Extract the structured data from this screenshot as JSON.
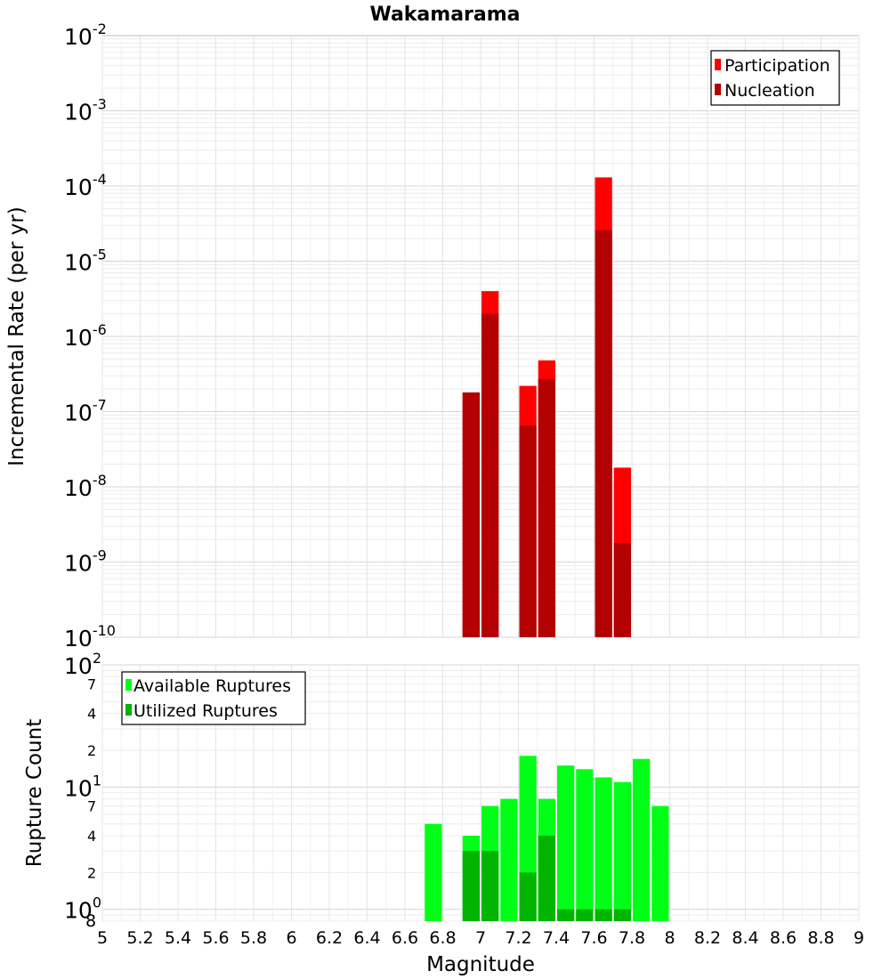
{
  "chart_data": [
    {
      "type": "bar",
      "title": "Wakamarama",
      "xlabel": "",
      "ylabel": "Incremental Rate (per yr)",
      "yscale": "log",
      "ylim": [
        1e-10,
        0.01
      ],
      "xlim": [
        5,
        9
      ],
      "grid": true,
      "legend_position": "top-right",
      "y_tick_labels": [
        {
          "base": "10",
          "exp": "-10"
        },
        {
          "base": "10",
          "exp": "-9"
        },
        {
          "base": "10",
          "exp": "-8"
        },
        {
          "base": "10",
          "exp": "-7"
        },
        {
          "base": "10",
          "exp": "-6"
        },
        {
          "base": "10",
          "exp": "-5"
        },
        {
          "base": "10",
          "exp": "-4"
        },
        {
          "base": "10",
          "exp": "-3"
        },
        {
          "base": "10",
          "exp": "-2"
        }
      ],
      "series": [
        {
          "name": "Participation",
          "color": "#ff0000",
          "x": [
            6.95,
            7.05,
            7.25,
            7.35,
            7.65,
            7.75
          ],
          "values": [
            1.8e-07,
            4e-06,
            2.2e-07,
            4.8e-07,
            0.00013,
            1.8e-08
          ]
        },
        {
          "name": "Nucleation",
          "color": "#b30000",
          "x": [
            6.95,
            7.05,
            7.25,
            7.35,
            7.65,
            7.75
          ],
          "values": [
            1.8e-07,
            2e-06,
            6.5e-08,
            2.7e-07,
            2.6e-05,
            1.8e-09
          ]
        }
      ]
    },
    {
      "type": "bar",
      "title": "",
      "xlabel": "Magnitude",
      "ylabel": "Rupture Count",
      "yscale": "log",
      "ylim": [
        0.8,
        100
      ],
      "xlim": [
        5,
        9
      ],
      "grid": true,
      "legend_position": "top-left",
      "x_tick_labels": [
        "5",
        "5.2",
        "5.4",
        "5.6",
        "5.8",
        "6",
        "6.2",
        "6.4",
        "6.6",
        "6.8",
        "7",
        "7.2",
        "7.4",
        "7.6",
        "7.8",
        "8",
        "8.2",
        "8.4",
        "8.6",
        "8.8",
        "9"
      ],
      "y_minor_labels": [
        "7",
        "4",
        "2",
        "7",
        "4",
        "2",
        "8"
      ],
      "y_major_labels": [
        {
          "base": "10",
          "exp": "0"
        },
        {
          "base": "10",
          "exp": "1"
        },
        {
          "base": "10",
          "exp": "2"
        }
      ],
      "series": [
        {
          "name": "Available Ruptures",
          "color": "#00ff17",
          "x": [
            6.75,
            6.95,
            7.05,
            7.15,
            7.25,
            7.35,
            7.45,
            7.55,
            7.65,
            7.75,
            7.85,
            7.95
          ],
          "values": [
            5,
            4,
            7,
            8,
            18,
            8,
            15,
            14,
            12,
            11,
            17,
            7
          ]
        },
        {
          "name": "Utilized Ruptures",
          "color": "#00b400",
          "x": [
            6.95,
            7.05,
            7.25,
            7.35,
            7.45,
            7.55,
            7.65,
            7.75
          ],
          "values": [
            3,
            3,
            2,
            4,
            1,
            1,
            1,
            1
          ]
        }
      ]
    }
  ]
}
